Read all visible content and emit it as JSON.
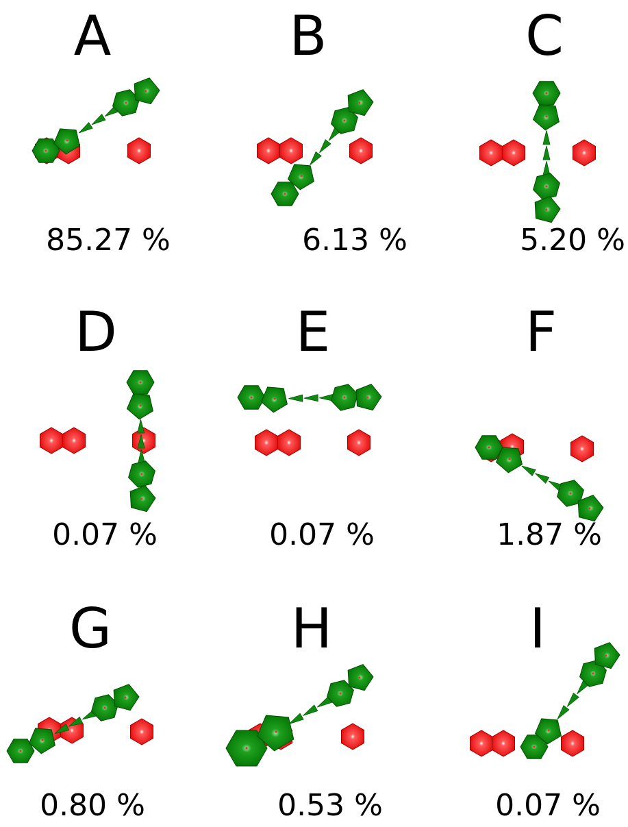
{
  "panels": [
    {
      "label": "A",
      "percent": "85.27 %"
    },
    {
      "label": "B",
      "percent": "6.13 %"
    },
    {
      "label": "C",
      "percent": "5.20 %"
    },
    {
      "label": "D",
      "percent": "0.07 %"
    },
    {
      "label": "E",
      "percent": "0.07 %"
    },
    {
      "label": "F",
      "percent": "1.87 %"
    },
    {
      "label": "G",
      "percent": "0.80 %"
    },
    {
      "label": "H",
      "percent": "0.53 %"
    },
    {
      "label": "I",
      "percent": "0.07 %"
    }
  ]
}
